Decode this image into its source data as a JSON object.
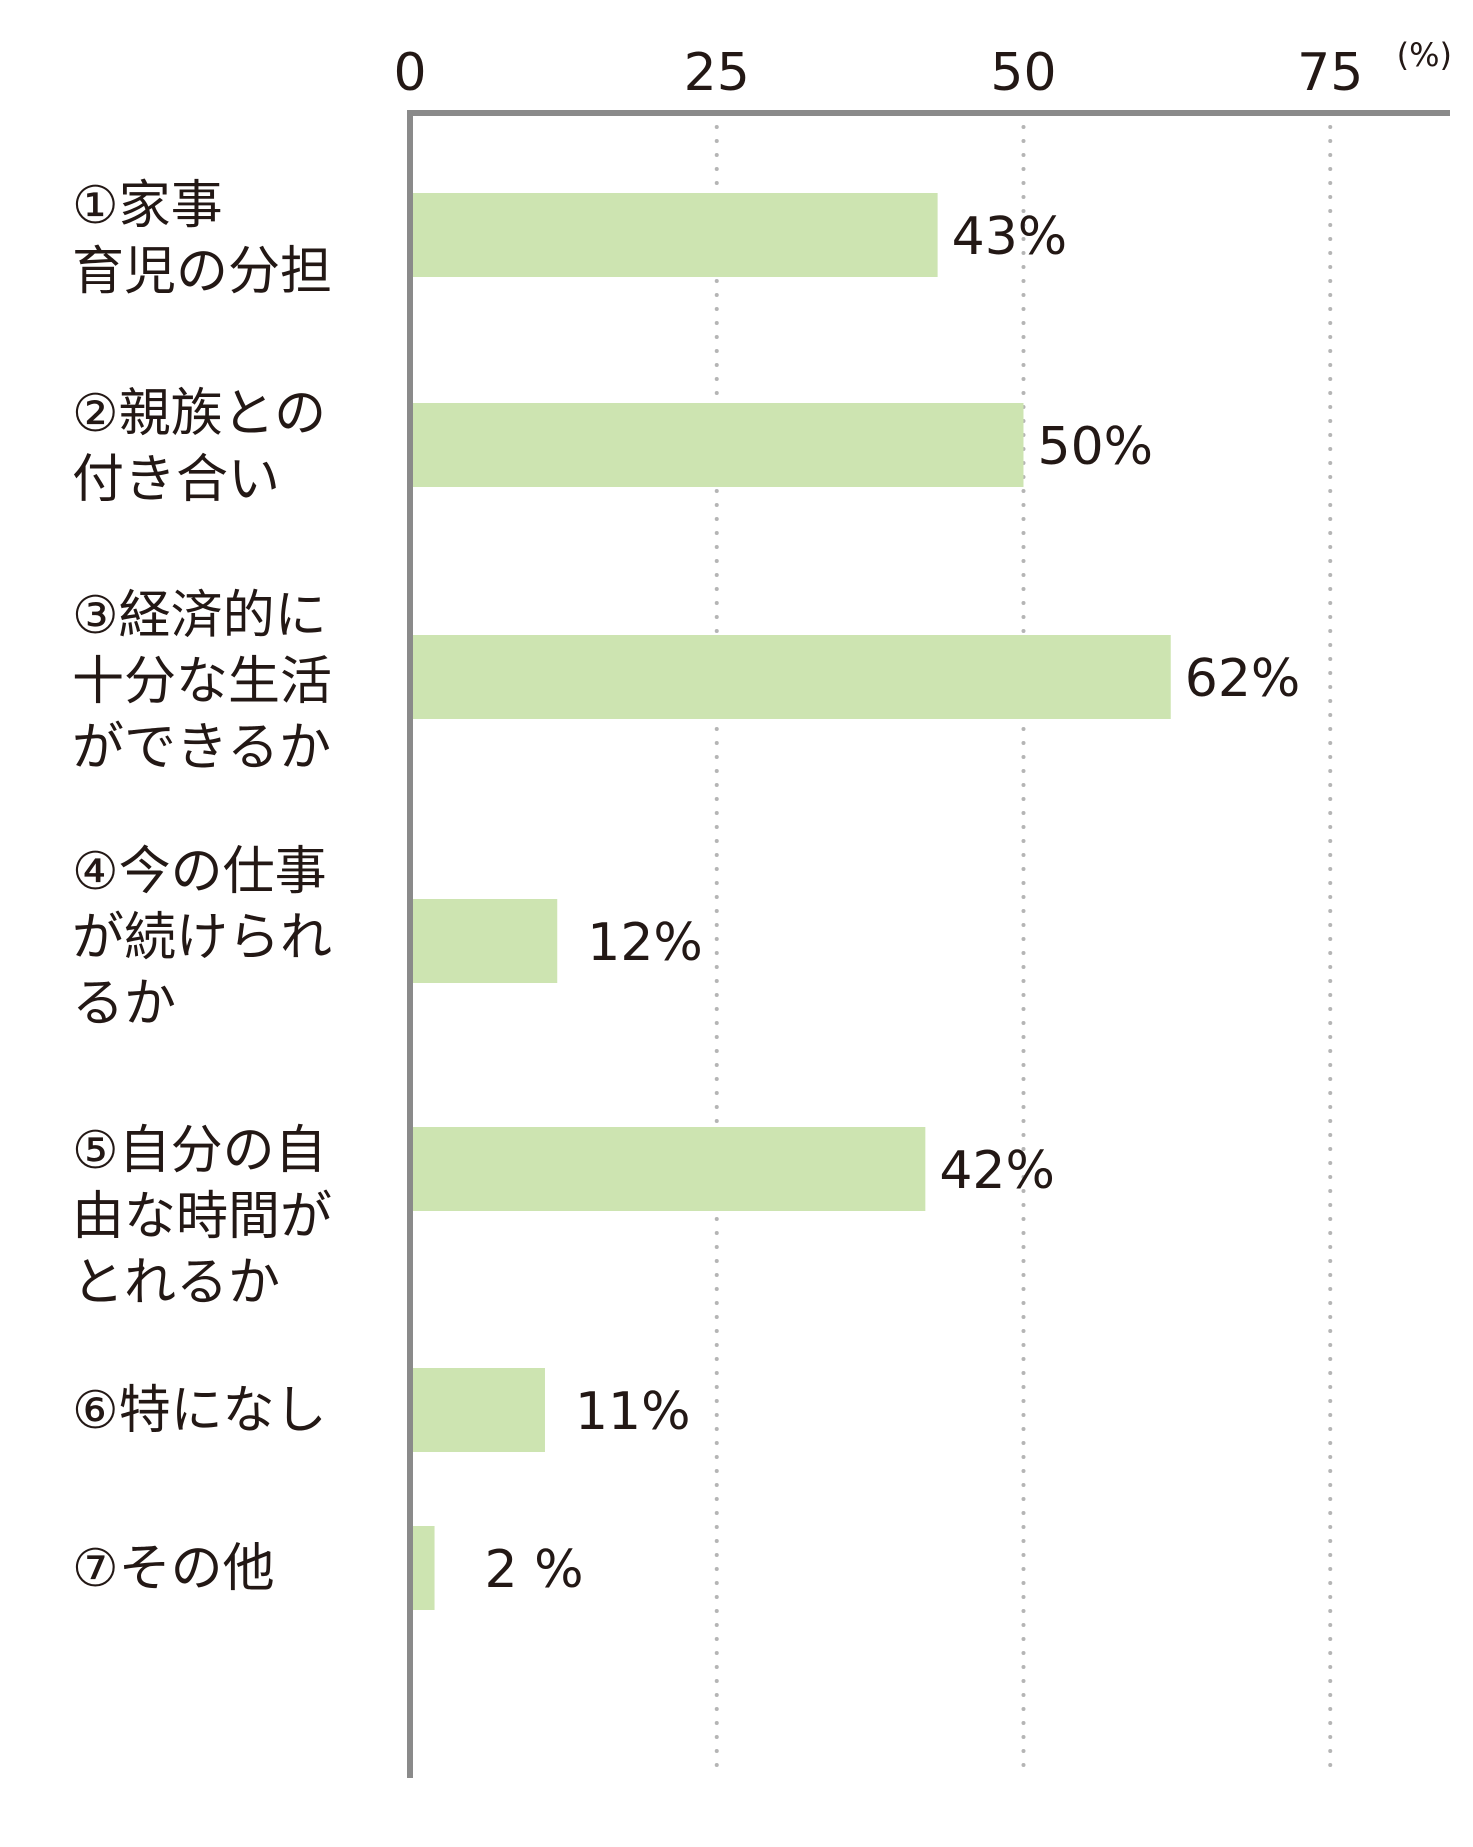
{
  "chart_data": {
    "type": "bar",
    "orientation": "horizontal",
    "unit_label": "(%)",
    "ticks": [
      0,
      25,
      50,
      75
    ],
    "xlim": [
      0,
      84
    ],
    "grid": "dotted vertical",
    "categories": [
      [
        "①家事",
        "育児の分担"
      ],
      [
        "②親族との",
        "付き合い"
      ],
      [
        "③経済的に",
        "十分な生活",
        "ができるか"
      ],
      [
        "④今の仕事",
        "が続けられ",
        "るか"
      ],
      [
        "⑤自分の自",
        "由な時間が",
        "とれるか"
      ],
      [
        "⑥特になし"
      ],
      [
        "⑦その他"
      ]
    ],
    "values": [
      43,
      50,
      62,
      12,
      42,
      11,
      2
    ],
    "value_labels": [
      "43%",
      "50%",
      "62%",
      "12%",
      "42%",
      "11%",
      "2 %"
    ]
  },
  "colors": {
    "bar": "#cde4b1",
    "axis": "#8a8a8a",
    "grid": "#b5b5b5",
    "text": "#231815"
  }
}
